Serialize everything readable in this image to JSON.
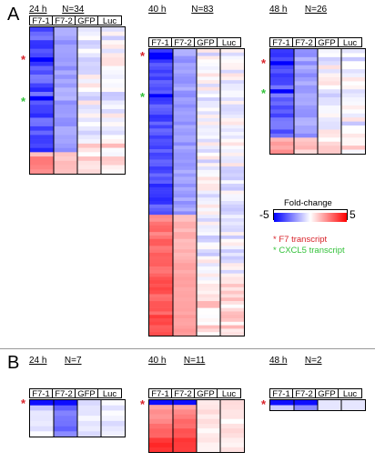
{
  "panels": [
    {
      "letter": "A",
      "groups": [
        {
          "time": "24 h",
          "n": "N=34",
          "rows": 34,
          "marker_red": 0.21,
          "marker_green": 0.49
        },
        {
          "time": "40 h",
          "n": "N=83",
          "rows": 83,
          "marker_red": 0.02,
          "marker_green": 0.16
        },
        {
          "time": "48 h",
          "n": "N=26",
          "rows": 26,
          "marker_red": 0.12,
          "marker_green": 0.4
        }
      ]
    },
    {
      "letter": "B",
      "groups": [
        {
          "time": "24 h",
          "n": "N=7",
          "rows": 7,
          "marker_red": 0.05
        },
        {
          "time": "40 h",
          "n": "N=11",
          "rows": 11,
          "marker_red": 0.05
        },
        {
          "time": "48 h",
          "n": "N=2",
          "rows": 2,
          "marker_red": 0.25
        }
      ]
    }
  ],
  "columns": [
    "F7-1",
    "F7-2",
    "GFP",
    "Luc"
  ],
  "legend": {
    "title": "Fold-change",
    "min_label": "-5",
    "max_label": "5",
    "colors": {
      "low": "#0000ff",
      "mid": "#ffffff",
      "high": "#ff0000"
    },
    "marker_symbol": "*",
    "red_key": "F7 transcript",
    "green_key": "CXCL5 transcript",
    "red_color": "#d8232a",
    "green_color": "#33c23a"
  }
}
